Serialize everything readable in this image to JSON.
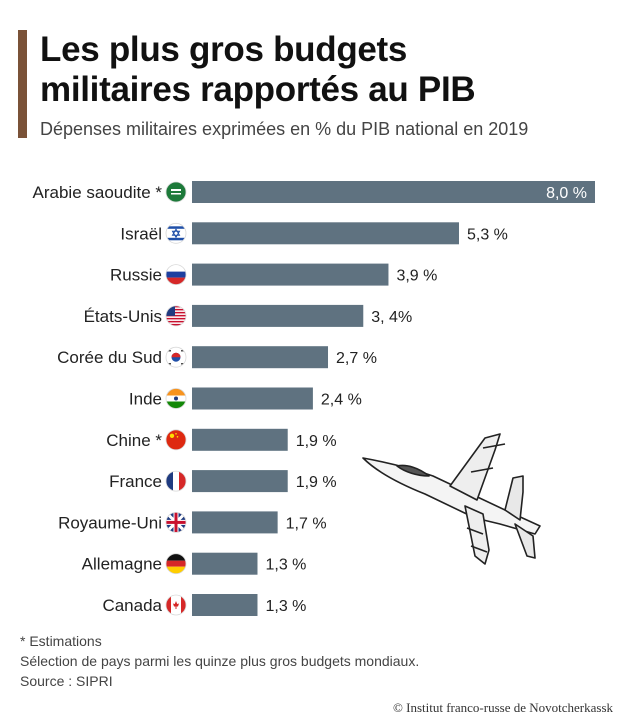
{
  "title_line1": "Les plus gros budgets",
  "title_line2": "militaires rapportés au PIB",
  "subtitle": "Dépenses militaires exprimées en % du PIB national en 2019",
  "footnotes": {
    "estimation": "* Estimations",
    "selection": "Sélection de pays parmi les quinze plus gros budgets mondiaux.",
    "source": "Source : SIPRI"
  },
  "credit": "© Institut franco-russe de Novotcherkassk",
  "colors": {
    "bar": "#5f7280",
    "accent": "#7a5238",
    "text": "#222222"
  },
  "chart_data": {
    "type": "bar",
    "orientation": "horizontal",
    "title": "Les plus gros budgets militaires rapportés au PIB",
    "subtitle": "Dépenses militaires exprimées en % du PIB national en 2019",
    "categories": [
      "Arabie saoudite *",
      "Israël",
      "Russie",
      "États-Unis",
      "Corée du Sud",
      "Inde",
      "Chine *",
      "France",
      "Royaume-Uni",
      "Allemagne",
      "Canada"
    ],
    "values": [
      8.0,
      5.3,
      3.9,
      3.4,
      2.7,
      2.4,
      1.9,
      1.9,
      1.7,
      1.3,
      1.3
    ],
    "value_labels": [
      "8,0 %",
      "5,3 %",
      "3,9 %",
      "3, 4%",
      "2,7 %",
      "2,4 %",
      "1,9 %",
      "1,9 %",
      "1,7 %",
      "1,3 %",
      "1,3 %"
    ],
    "flags": [
      "saudi-arabia-flag-icon",
      "israel-flag-icon",
      "russia-flag-icon",
      "usa-flag-icon",
      "south-korea-flag-icon",
      "india-flag-icon",
      "china-flag-icon",
      "france-flag-icon",
      "uk-flag-icon",
      "germany-flag-icon",
      "canada-flag-icon"
    ],
    "xlim": [
      0,
      8.0
    ],
    "grid": false,
    "legend": "none"
  }
}
